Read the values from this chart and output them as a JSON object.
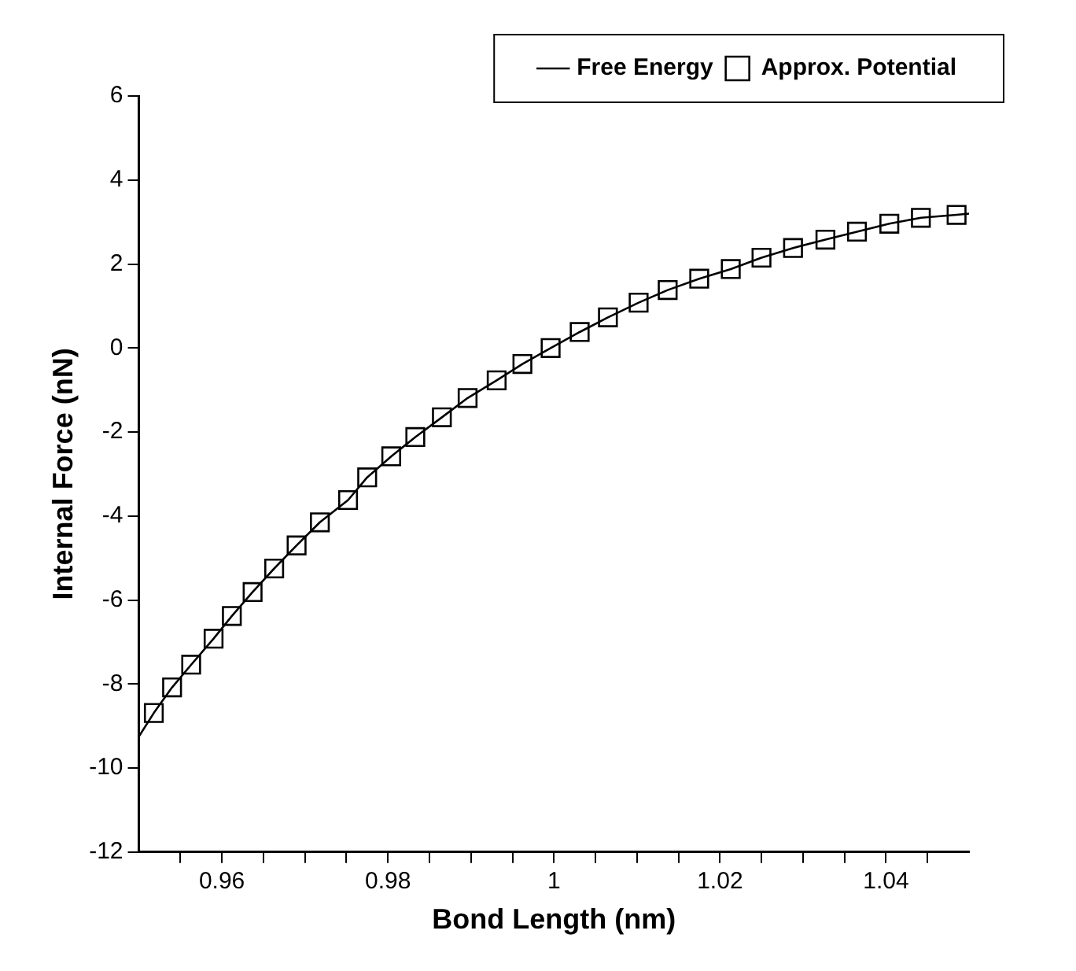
{
  "chart_data": {
    "type": "line",
    "xlabel": "Bond Length (nm)",
    "ylabel": "Internal Force (nN)",
    "legend": "top right",
    "grid": false,
    "xlim": [
      0.95,
      1.05
    ],
    "xticks": [
      {
        "value": 0.955,
        "label": null
      },
      0.96,
      {
        "value": 0.965,
        "label": null
      },
      {
        "value": 0.97,
        "label": null
      },
      {
        "value": 0.975,
        "label": null
      },
      0.98,
      {
        "value": 0.985,
        "label": null
      },
      {
        "value": 0.99,
        "label": null
      },
      {
        "value": 0.995,
        "label": null
      },
      1,
      {
        "value": 1.005,
        "label": null
      },
      {
        "value": 1.01,
        "label": null
      },
      {
        "value": 1.015,
        "label": null
      },
      1.02,
      {
        "value": 1.025,
        "label": null
      },
      {
        "value": 1.03,
        "label": null
      },
      {
        "value": 1.035,
        "label": null
      },
      1.04,
      {
        "value": 1.045,
        "label": null
      }
    ],
    "ylim": [
      -12,
      6
    ],
    "yticks": [
      -12,
      -10,
      -8,
      -6,
      -4,
      -2,
      0,
      2,
      4,
      6
    ],
    "series": [
      {
        "name": "Free Energy",
        "color": "#000000",
        "marker": "none",
        "line_style": "solid",
        "x": [
          0.95,
          0.9518,
          0.954,
          0.9563,
          0.959,
          0.9612,
          0.9637,
          0.9663,
          0.969,
          0.9718,
          0.9752,
          0.9775,
          0.9804,
          0.9833,
          0.9865,
          0.9896,
          0.9931,
          0.9962,
          0.9996,
          1.0031,
          1.0065,
          1.0102,
          1.0137,
          1.0175,
          1.0213,
          1.025,
          1.0288,
          1.0327,
          1.0365,
          1.0404,
          1.0442,
          1.0485,
          1.05
        ],
        "values": [
          -9.25,
          -8.69,
          -8.08,
          -7.54,
          -6.92,
          -6.38,
          -5.81,
          -5.25,
          -4.7,
          -4.15,
          -3.62,
          -3.08,
          -2.58,
          -2.12,
          -1.65,
          -1.19,
          -0.77,
          -0.38,
          0,
          0.38,
          0.73,
          1.08,
          1.38,
          1.65,
          1.88,
          2.15,
          2.38,
          2.58,
          2.77,
          2.96,
          3.1,
          3.17,
          3.2
        ]
      },
      {
        "name": "Approx. Potential",
        "type": "scatter",
        "color": "#000000",
        "marker": "square",
        "x": [
          0.9518,
          0.954,
          0.9563,
          0.959,
          0.9612,
          0.9637,
          0.9663,
          0.969,
          0.9718,
          0.9752,
          0.9775,
          0.9804,
          0.9833,
          0.9865,
          0.9896,
          0.9931,
          0.9962,
          0.9996,
          1.0031,
          1.0065,
          1.0102,
          1.0137,
          1.0175,
          1.0213,
          1.025,
          1.0288,
          1.0327,
          1.0365,
          1.0404,
          1.0442,
          1.0485
        ],
        "values": [
          -8.69,
          -8.08,
          -7.54,
          -6.92,
          -6.38,
          -5.81,
          -5.25,
          -4.7,
          -4.15,
          -3.62,
          -3.08,
          -2.58,
          -2.12,
          -1.65,
          -1.19,
          -0.77,
          -0.38,
          0,
          0.38,
          0.73,
          1.08,
          1.38,
          1.65,
          1.88,
          2.15,
          2.38,
          2.58,
          2.77,
          2.96,
          3.1,
          3.17
        ]
      }
    ]
  }
}
